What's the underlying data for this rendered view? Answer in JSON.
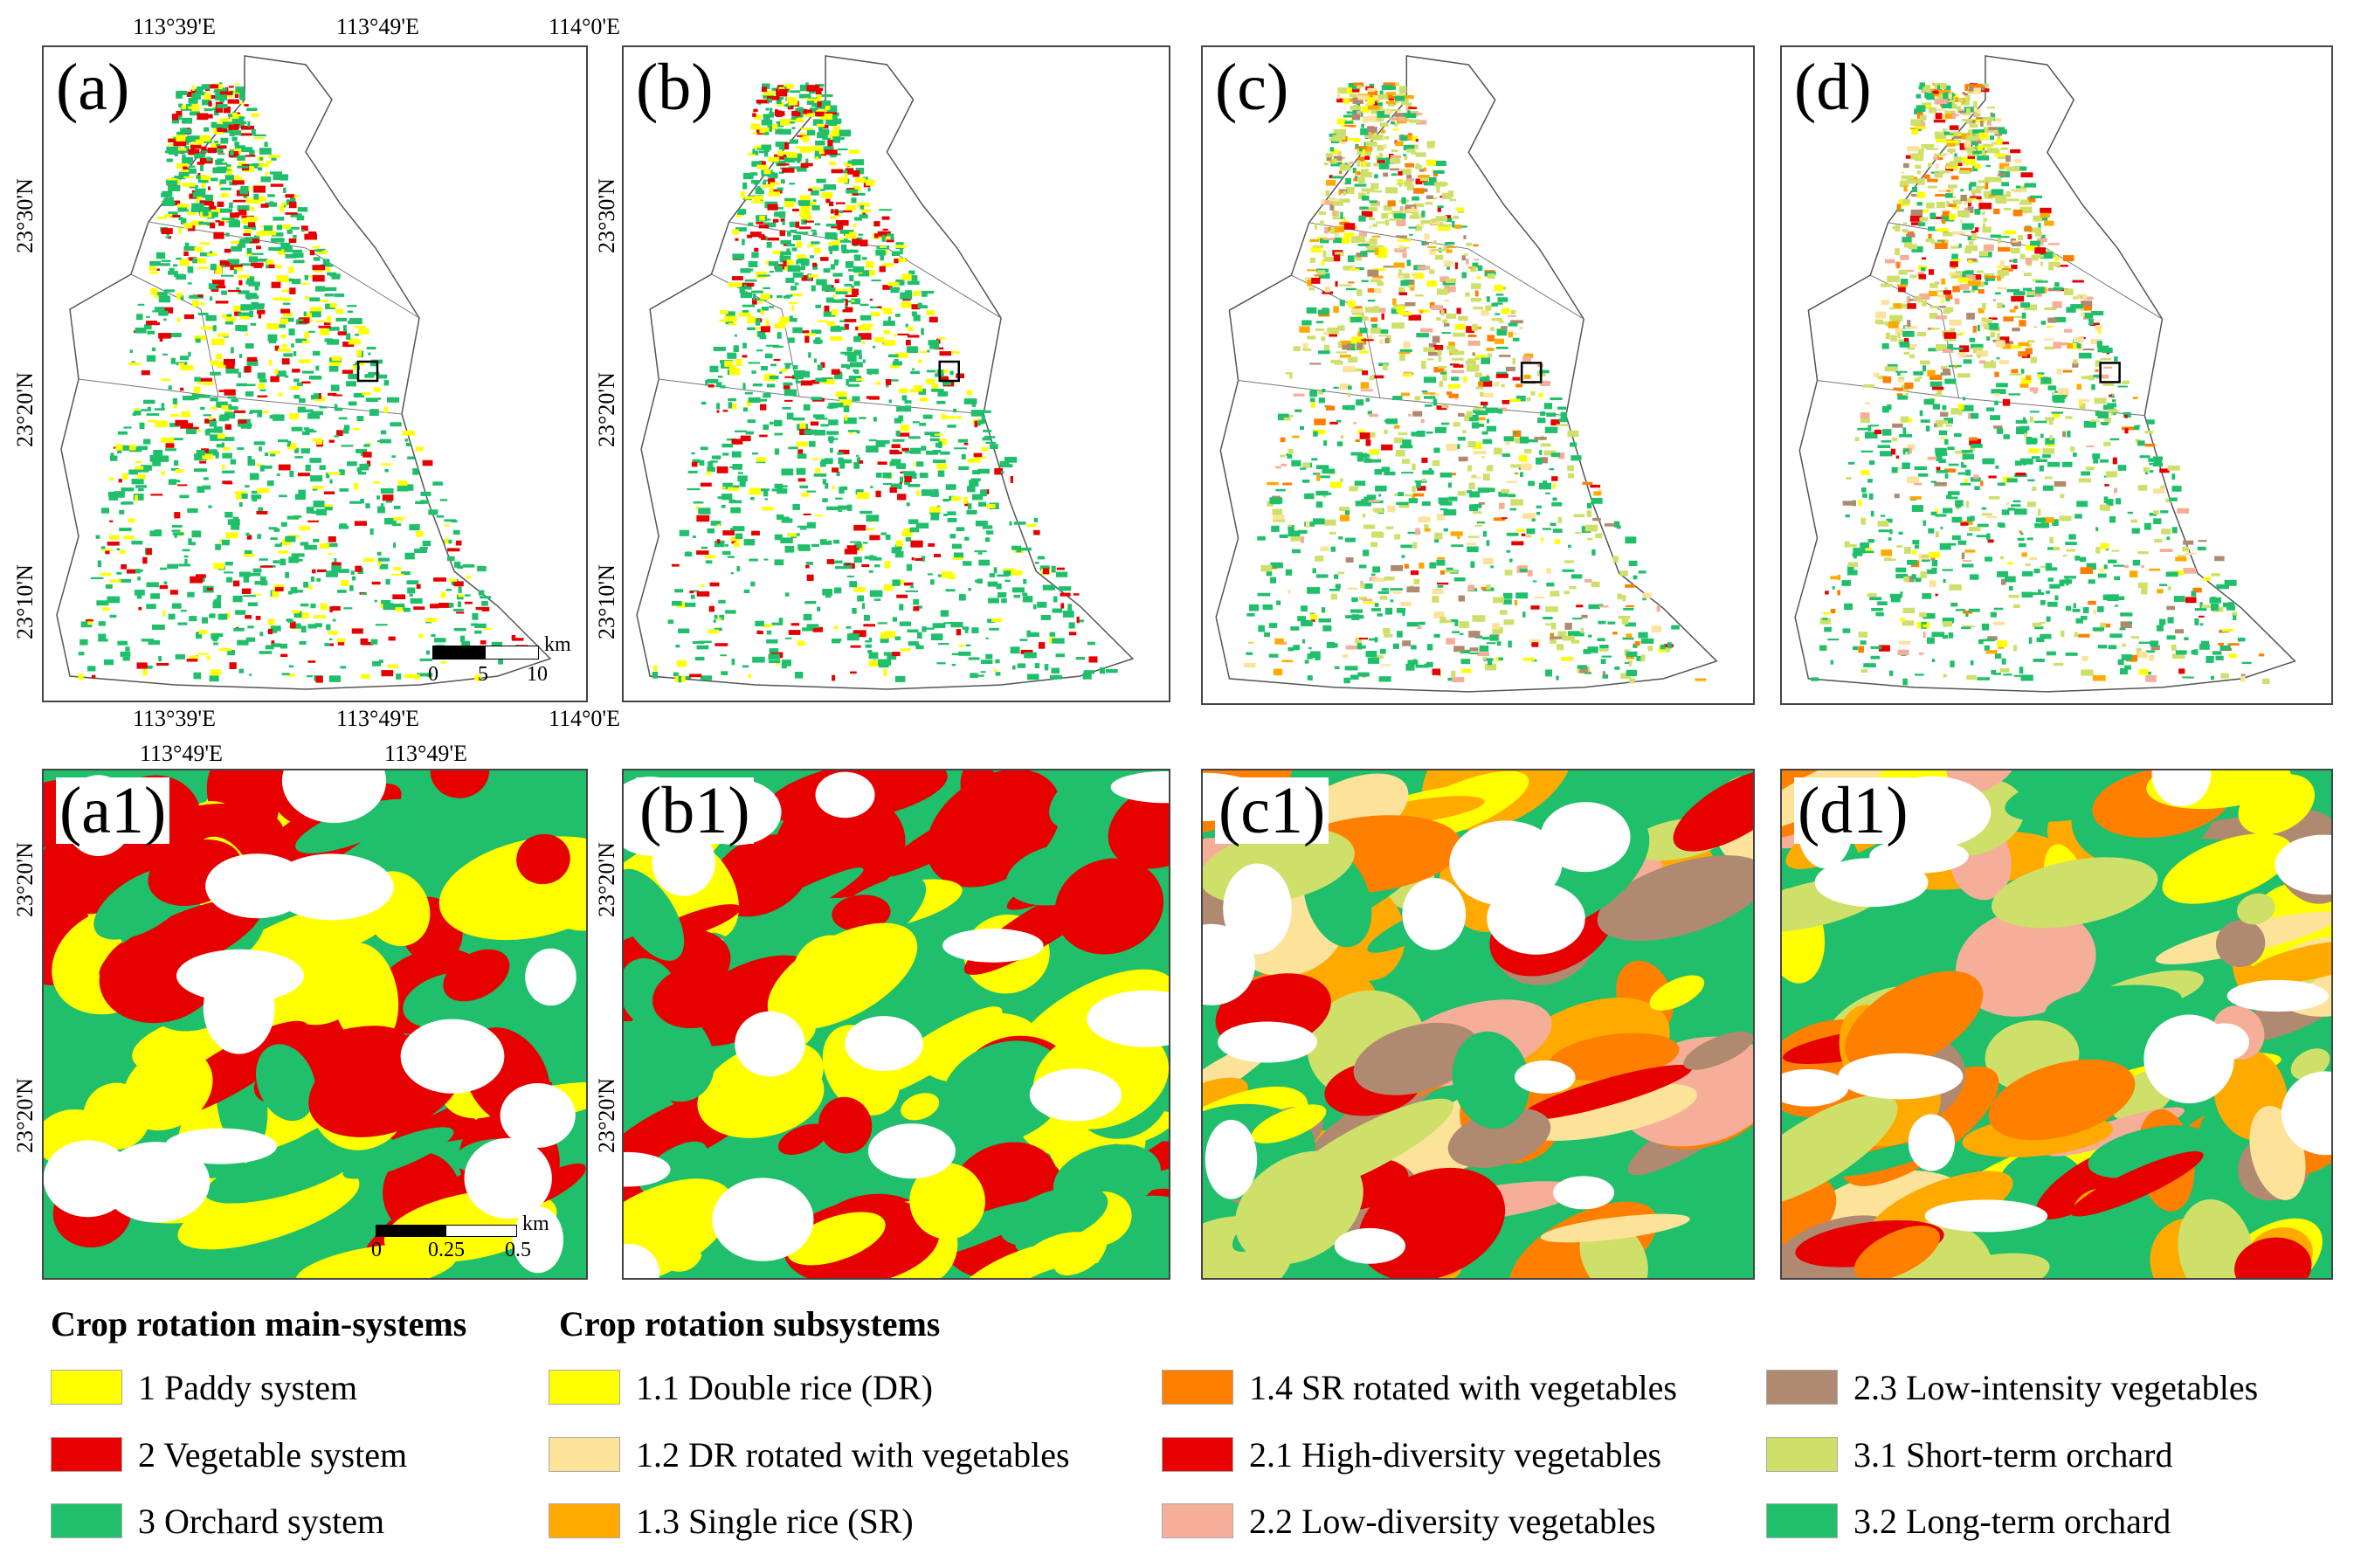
{
  "figure": {
    "overview_panels": [
      {
        "id": "a",
        "label": "(a)"
      },
      {
        "id": "b",
        "label": "(b)"
      },
      {
        "id": "c",
        "label": "(c)"
      },
      {
        "id": "d",
        "label": "(d)"
      }
    ],
    "zoom_panels": [
      {
        "id": "a1",
        "label": "(a1)"
      },
      {
        "id": "b1",
        "label": "(b1)"
      },
      {
        "id": "c1",
        "label": "(c1)"
      },
      {
        "id": "d1",
        "label": "(d1)"
      }
    ],
    "overview_axes": {
      "top_ticks": [
        "113°39'E",
        "113°49'E",
        "114°0'E"
      ],
      "bottom_ticks": [
        "113°39'E",
        "113°49'E",
        "114°0'E"
      ],
      "left_ticks": [
        "23°30'N",
        "23°20'N",
        "23°10'N"
      ],
      "b_left_ticks": [
        "23°30'N",
        "23°20'N",
        "23°10'N"
      ]
    },
    "zoom_axes": {
      "top_ticks": [
        "113°49'E",
        "113°49'E"
      ],
      "left_ticks": [
        "23°20'N",
        "23°20'N"
      ],
      "b1_left_ticks": [
        "23°20'N",
        "23°20'N"
      ]
    },
    "overview_scale": {
      "ticks": [
        "0",
        "5",
        "10"
      ],
      "unit": "km"
    },
    "zoom_scale": {
      "ticks": [
        "0",
        "0.25",
        "0.5"
      ],
      "unit": "km"
    }
  },
  "legend": {
    "main_heading": "Crop rotation main-systems",
    "sub_heading": "Crop rotation subsystems",
    "main_systems": [
      {
        "label": "1 Paddy system",
        "color": "#ffff00"
      },
      {
        "label": "2 Vegetable system",
        "color": "#e60000"
      },
      {
        "label": "3 Orchard system",
        "color": "#1fbf6b"
      }
    ],
    "subsystems": [
      {
        "label": "1.1 Double rice (DR)",
        "color": "#ffff00"
      },
      {
        "label": "1.2 DR rotated with vegetables",
        "color": "#fde29a"
      },
      {
        "label": "1.3 Single rice (SR)",
        "color": "#ffaa00"
      },
      {
        "label": "1.4 SR rotated with vegetables",
        "color": "#ff7f00"
      },
      {
        "label": "2.1 High-diversity vegetables",
        "color": "#e60000"
      },
      {
        "label": "2.2 Low-diversity vegetables",
        "color": "#f5ae98"
      },
      {
        "label": "2.3 Low-intensity vegetables",
        "color": "#b08a70"
      },
      {
        "label": "3.1 Short-term orchard",
        "color": "#cfe06a"
      },
      {
        "label": "3.2 Long-term orchard",
        "color": "#1fbf6b"
      }
    ]
  }
}
